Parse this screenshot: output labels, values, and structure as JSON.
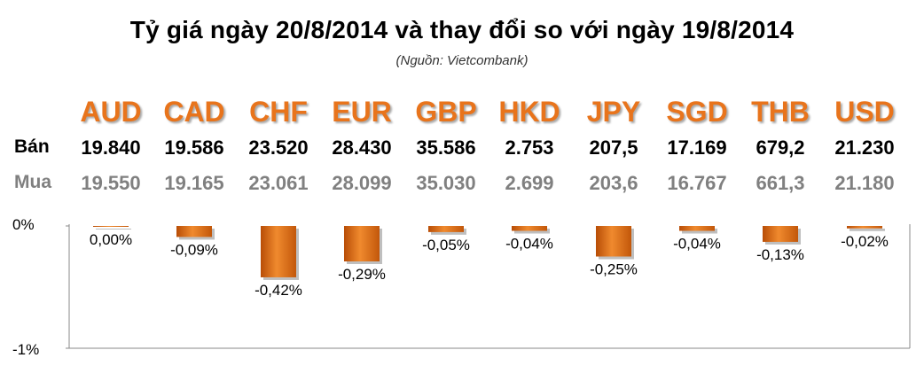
{
  "title": "Tỷ giá ngày 20/8/2014 và thay đổi so với ngày 19/8/2014",
  "subtitle": "(Nguồn: Vietcombank)",
  "labels": {
    "sell": "Bán",
    "buy": "Mua"
  },
  "currencies": [
    "AUD",
    "CAD",
    "CHF",
    "EUR",
    "GBP",
    "HKD",
    "JPY",
    "SGD",
    "THB",
    "USD"
  ],
  "sell_rates": [
    "19.840",
    "19.586",
    "23.520",
    "28.430",
    "35.586",
    "2.753",
    "207,5",
    "17.169",
    "679,2",
    "21.230"
  ],
  "buy_rates": [
    "19.550",
    "19.165",
    "23.061",
    "28.099",
    "35.030",
    "2.699",
    "203,6",
    "16.767",
    "661,3",
    "21.180"
  ],
  "colors": {
    "accent": "#e8741c",
    "bar": "#d9640f",
    "buy_text": "#808080"
  },
  "chart_data": {
    "type": "bar",
    "categories": [
      "AUD",
      "CAD",
      "CHF",
      "EUR",
      "GBP",
      "HKD",
      "JPY",
      "SGD",
      "THB",
      "USD"
    ],
    "values": [
      0.0,
      -0.09,
      -0.42,
      -0.29,
      -0.05,
      -0.04,
      -0.25,
      -0.04,
      -0.13,
      -0.02
    ],
    "value_labels": [
      "0,00%",
      "-0,09%",
      "-0,42%",
      "-0,29%",
      "-0,05%",
      "-0,04%",
      "-0,25%",
      "-0,04%",
      "-0,13%",
      "-0,02%"
    ],
    "ylim": [
      -1,
      0
    ],
    "yticks": [
      "0%",
      "-1%"
    ],
    "unit": "%",
    "grid": false
  }
}
